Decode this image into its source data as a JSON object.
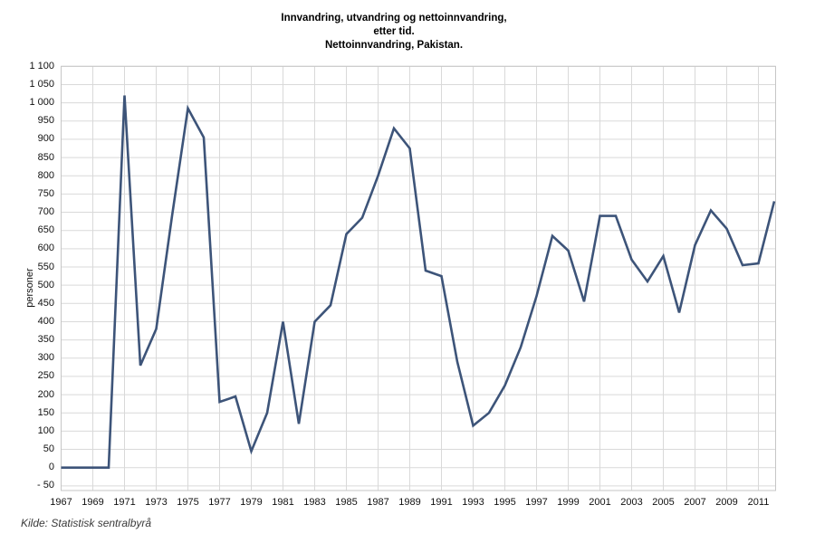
{
  "title": {
    "line1": "Innvandring, utvandring og nettoinnvandring,",
    "line2": "etter tid.",
    "line3": "Nettoinnvandring, Pakistan."
  },
  "y_axis": {
    "label": "personer",
    "tick_labels": [
      "1 100",
      "1 050",
      "1 000",
      "950",
      "900",
      "850",
      "800",
      "750",
      "700",
      "650",
      "600",
      "550",
      "500",
      "450",
      "400",
      "350",
      "300",
      "250",
      "200",
      "150",
      "100",
      "50",
      "0",
      "- 50"
    ],
    "tick_values": [
      1100,
      1050,
      1000,
      950,
      900,
      850,
      800,
      750,
      700,
      650,
      600,
      550,
      500,
      450,
      400,
      350,
      300,
      250,
      200,
      150,
      100,
      50,
      0,
      -50
    ]
  },
  "x_axis": {
    "tick_labels": [
      "1967",
      "1969",
      "1971",
      "1973",
      "1975",
      "1977",
      "1979",
      "1981",
      "1983",
      "1985",
      "1987",
      "1989",
      "1991",
      "1993",
      "1995",
      "1997",
      "1999",
      "2001",
      "2003",
      "2005",
      "2007",
      "2009",
      "2011"
    ],
    "tick_values": [
      1967,
      1969,
      1971,
      1973,
      1975,
      1977,
      1979,
      1981,
      1983,
      1985,
      1987,
      1989,
      1991,
      1993,
      1995,
      1997,
      1999,
      2001,
      2003,
      2005,
      2007,
      2009,
      2011
    ]
  },
  "source": "Kilde: Statistisk sentralbyrå",
  "colors": {
    "line": "#3d5479",
    "grid": "#d9d9d9",
    "border": "#c6c6c6",
    "background": "#ffffff",
    "text": "#000000"
  },
  "chart_data": {
    "type": "line",
    "title": "Innvandring, utvandring og nettoinnvandring, etter tid. Nettoinnvandring, Pakistan.",
    "xlabel": "",
    "ylabel": "personer",
    "legend": false,
    "grid": true,
    "xlim": [
      1967,
      2012
    ],
    "ylim": [
      -50,
      1100
    ],
    "x": [
      1967,
      1968,
      1969,
      1970,
      1971,
      1972,
      1973,
      1974,
      1975,
      1976,
      1977,
      1978,
      1979,
      1980,
      1981,
      1982,
      1983,
      1984,
      1985,
      1986,
      1987,
      1988,
      1989,
      1990,
      1991,
      1992,
      1993,
      1994,
      1995,
      1996,
      1997,
      1998,
      1999,
      2000,
      2001,
      2002,
      2003,
      2004,
      2005,
      2006,
      2007,
      2008,
      2009,
      2010,
      2011,
      2012
    ],
    "series": [
      {
        "name": "Nettoinnvandring, Pakistan",
        "values": [
          0,
          0,
          0,
          0,
          1020,
          280,
          380,
          690,
          985,
          905,
          180,
          195,
          45,
          150,
          400,
          120,
          400,
          445,
          640,
          685,
          800,
          930,
          875,
          540,
          525,
          290,
          115,
          150,
          225,
          330,
          470,
          635,
          595,
          455,
          690,
          690,
          570,
          510,
          580,
          425,
          610,
          705,
          655,
          555,
          560,
          730
        ]
      }
    ]
  }
}
